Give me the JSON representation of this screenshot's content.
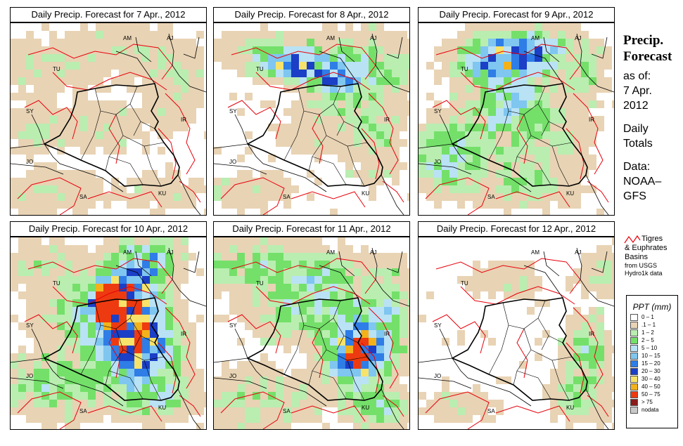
{
  "panels": [
    {
      "title": "Daily Precip. Forecast for  7 Apr., 2012",
      "labels": {
        "AM": "AM",
        "AJ": "AJ",
        "TU": "TU",
        "SY": "SY",
        "IR": "IR",
        "JO": "JO",
        "SA": "SA",
        "KU": "KU"
      }
    },
    {
      "title": "Daily Precip. Forecast for  8 Apr., 2012",
      "labels": {
        "AM": "AM",
        "AJ": "AJ",
        "TU": "TU",
        "SY": "SY",
        "IR": "IR",
        "JO": "JO",
        "SA": "SA",
        "KU": "KU"
      }
    },
    {
      "title": "Daily Precip. Forecast for  9 Apr., 2012",
      "labels": {
        "AM": "AM",
        "AJ": "AJ",
        "TU": "TU",
        "SY": "SY",
        "IR": "IR",
        "JO": "JO",
        "SA": "SA",
        "KU": "KU"
      }
    },
    {
      "title": "Daily Precip. Forecast for  10 Apr., 2012",
      "labels": {
        "AM": "AM",
        "AJ": "AJ",
        "TU": "TU",
        "SY": "SY",
        "IR": "IR",
        "JO": "JO",
        "SA": "SA",
        "KU": "KU"
      }
    },
    {
      "title": "Daily Precip. Forecast for  11 Apr., 2012",
      "labels": {
        "AM": "AM",
        "AJ": "AJ",
        "TU": "TU",
        "SY": "SY",
        "IR": "IR",
        "JO": "JO",
        "SA": "SA",
        "KU": "KU"
      }
    },
    {
      "title": "Daily Precip. Forecast for  12 Apr., 2012",
      "labels": {
        "AM": "AM",
        "AJ": "AJ",
        "TU": "TU",
        "SY": "SY",
        "IR": "IR",
        "JO": "JO",
        "SA": "SA",
        "KU": "KU"
      }
    }
  ],
  "sidebar": {
    "heading1": "Precip.",
    "heading2": "Forecast",
    "asof1": "as of:",
    "asof2": "7 Apr.",
    "asof3": "2012",
    "daily1": "Daily",
    "daily2": "Totals",
    "data1": "Data:",
    "data2": "NOAA–",
    "data3": "GFS"
  },
  "basin_legend": {
    "line1": "Tigres",
    "line2": "& Euphrates",
    "line3": "Basins",
    "line4": "from USGS",
    "line5": "Hydro1k data",
    "line_color": "#e8000b"
  },
  "ppt_legend": {
    "title": "PPT (mm)",
    "bins": [
      {
        "label": "0 – 1",
        "color": "#ffffff"
      },
      {
        "label": ".1 – 1",
        "color": "#e8d3b4"
      },
      {
        "label": "1 – 2",
        "color": "#b9eeb0"
      },
      {
        "label": "2 – 5",
        "color": "#74e06a"
      },
      {
        "label": "5 – 10",
        "color": "#b9e2f5"
      },
      {
        "label": "10 – 15",
        "color": "#7fc6f0"
      },
      {
        "label": "15 – 20",
        "color": "#2f7de6"
      },
      {
        "label": "20 – 30",
        "color": "#1b3fc6"
      },
      {
        "label": "30 – 40",
        "color": "#f7e36a"
      },
      {
        "label": "40 – 50",
        "color": "#f3b21b"
      },
      {
        "label": "50 – 75",
        "color": "#ee3a10"
      },
      {
        "label": "> 75",
        "color": "#8b1a1a"
      },
      {
        "label": "nodata",
        "color": "#c8c8c8"
      }
    ]
  }
}
